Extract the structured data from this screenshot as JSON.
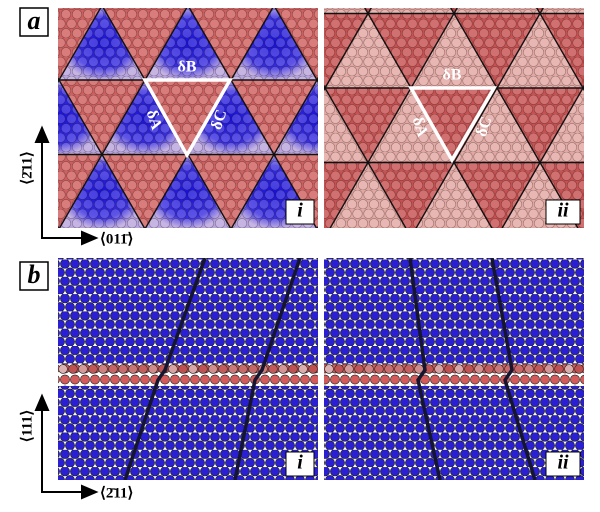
{
  "panel_a": {
    "label": "a",
    "sub_i": {
      "label": "i",
      "delta_b": "δB",
      "delta_a": "δA",
      "delta_c": "δC"
    },
    "sub_ii": {
      "label": "ii",
      "delta_b": "δB",
      "delta_a": "δA",
      "delta_c": "δC"
    }
  },
  "panel_b": {
    "label": "b",
    "sub_i": {
      "label": "i"
    },
    "sub_ii": {
      "label": "ii"
    }
  },
  "axes_a": {
    "vertical": "⟨2̄11⟩",
    "horizontal": "⟨011̄⟩"
  },
  "axes_b": {
    "vertical": "⟨111⟩",
    "horizontal": "⟨2̄11⟩"
  }
}
